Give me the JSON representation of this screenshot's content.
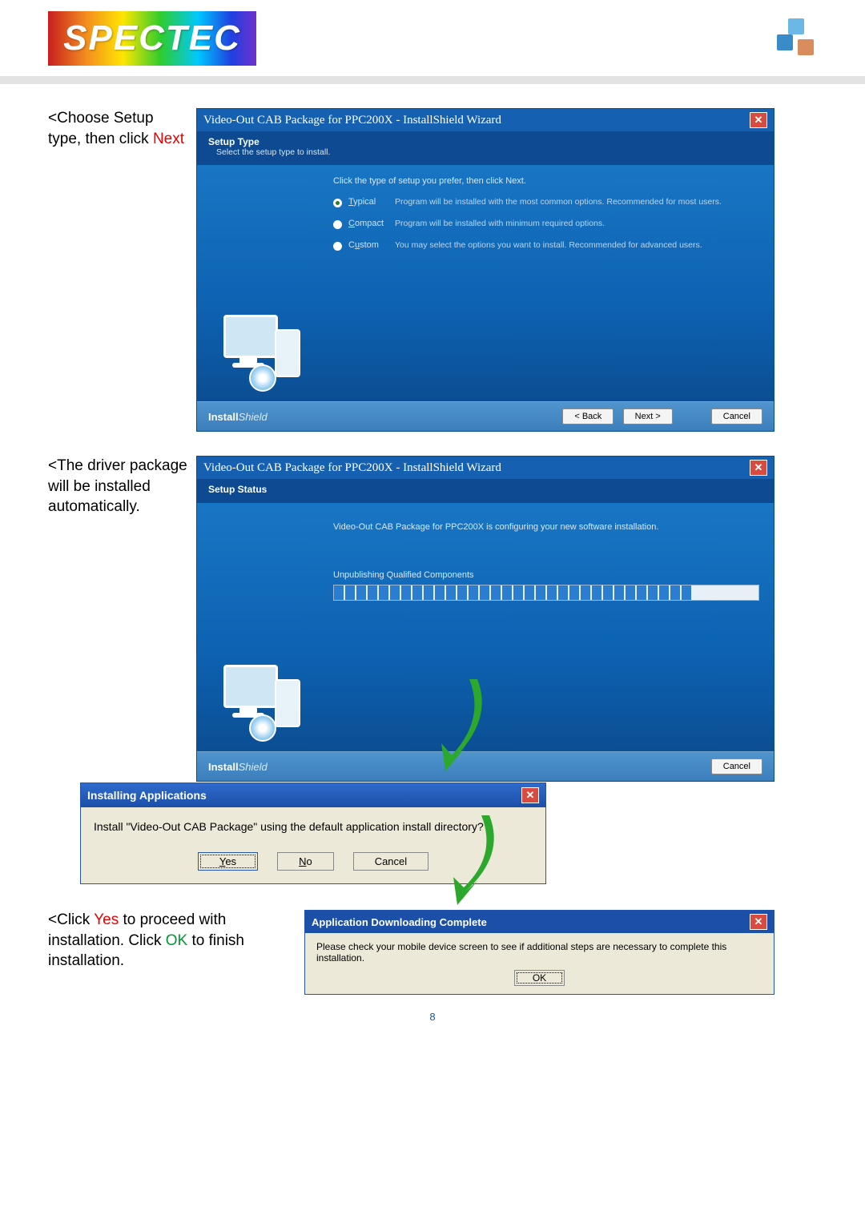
{
  "header": {
    "logo_text": "SPECTEC",
    "logo_gradient": [
      "#c81e1e",
      "#f28c1e",
      "#ffe600",
      "#2ecc2e",
      "#00c8ff",
      "#2040e0",
      "#7030d0"
    ]
  },
  "step1": {
    "caption_prefix": "<Choose Setup type, then click ",
    "caption_highlight": "Next",
    "window": {
      "title": "Video-Out CAB Package for PPC200X - InstallShield Wizard",
      "sub_title": "Setup Type",
      "sub_desc": "Select the setup type to install.",
      "instruct": "Click the type of setup you prefer, then click Next.",
      "options": [
        {
          "key": "typical",
          "letter": "T",
          "rest": "ypical",
          "desc": "Program will be installed with the most common options. Recommended for most users.",
          "selected": true
        },
        {
          "key": "compact",
          "letter": "C",
          "rest": "ompact",
          "desc": "Program will be installed with minimum required options.",
          "selected": false
        },
        {
          "key": "custom",
          "letter": "C",
          "rest": "ustom",
          "desc": "You may select the options you want to install. Recommended for advanced users.",
          "selected": false,
          "second_u": "u"
        }
      ],
      "footer_brand_prefix": "Install",
      "footer_brand_suffix": "Shield",
      "btn_back": "< Back",
      "btn_next": "Next >",
      "btn_cancel": "Cancel"
    }
  },
  "step2": {
    "caption": "<The driver package will be installed automatically.",
    "window": {
      "title": "Video-Out CAB Package for PPC200X - InstallShield Wizard",
      "sub_title": "Setup Status",
      "line1": "Video-Out CAB Package for PPC200X is configuring your new software installation.",
      "line2": "Unpublishing Qualified Components",
      "progress_segments": 32,
      "footer_brand_prefix": "Install",
      "footer_brand_suffix": "Shield",
      "btn_cancel": "Cancel"
    }
  },
  "msgbox": {
    "title": "Installing Applications",
    "body": "Install \"Video-Out CAB Package\" using the default application install directory?",
    "btn_yes": "Yes",
    "btn_no": "No",
    "btn_cancel": "Cancel"
  },
  "complete": {
    "title": "Application Downloading Complete",
    "body": "Please check your mobile device screen to see if additional steps are necessary to complete this installation.",
    "btn_ok": "OK"
  },
  "step3": {
    "caption_a": "<Click ",
    "caption_yes": "Yes",
    "caption_b": " to proceed with installation. Click ",
    "caption_ok": "OK",
    "caption_c": " to finish installation."
  },
  "page_number": "8",
  "colors": {
    "installer_bg": "#0d4a91",
    "titlebar": "#1560b0",
    "close_bg": "#d94b3e",
    "msgbox_bg": "#ece9d8",
    "msgbox_title": "#1b4fa8",
    "arrow": "#2ca82c",
    "highlight_red": "#e60000",
    "highlight_green": "#009933"
  }
}
